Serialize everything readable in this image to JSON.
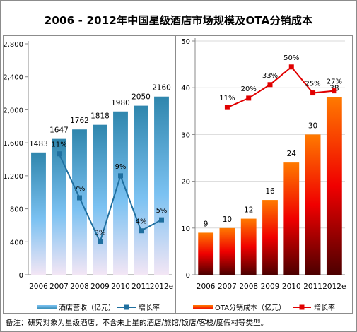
{
  "title": "2006 - 2012年中国星级酒店市场规模及OTA分销成本",
  "footnote": "备注：研究对象为星级酒店，不含未上星的酒店/旅馆/饭店/客栈/度假村等类型。",
  "colors": {
    "left_bar_top": "#2f86ad",
    "left_bar_mid": "#7cc2f2",
    "left_bar_bottom": "#f3e6f5",
    "right_bar_top": "#ff7a00",
    "right_bar_mid": "#f00000",
    "right_bar_bottom": "#4c0000",
    "left_line": "#1f6f9f",
    "right_line": "#e00000",
    "gridline": "#d9d9d9",
    "panel_border": "#8c8c8c"
  },
  "chart_data": [
    {
      "type": "bar",
      "categories": [
        "2006",
        "2007",
        "2008",
        "2009",
        "2010",
        "2011",
        "2012e"
      ],
      "series": [
        {
          "name": "酒店营收（亿元）",
          "values": [
            1483,
            1647,
            1762,
            1818,
            1980,
            2050,
            2160
          ]
        },
        {
          "name": "增长率",
          "type": "line",
          "values": [
            null,
            11,
            7,
            3,
            9,
            4,
            5
          ],
          "labels": [
            "",
            "11%",
            "7%",
            "3%",
            "9%",
            "4%",
            "5%"
          ]
        }
      ],
      "ylim": [
        0,
        2800
      ],
      "yticks": [
        "0",
        "400",
        "800",
        "1,200",
        "1,600",
        "2,000",
        "2,400",
        "2,800"
      ],
      "grid": false,
      "legend": "bottom"
    },
    {
      "type": "bar",
      "categories": [
        "2006",
        "2007",
        "2008",
        "2009",
        "2010",
        "2011",
        "2012e"
      ],
      "series": [
        {
          "name": "OTA分销成本（亿元）",
          "values": [
            9,
            10,
            12,
            16,
            24,
            30,
            38
          ]
        },
        {
          "name": "增长率",
          "type": "line",
          "values": [
            null,
            11,
            20,
            33,
            50,
            25,
            27
          ],
          "labels": [
            "",
            "11%",
            "20%",
            "33%",
            "50%",
            "25%",
            "27%"
          ]
        }
      ],
      "ylim": [
        0,
        50
      ],
      "yticks": [
        "0",
        "10",
        "20",
        "30",
        "40",
        "50"
      ],
      "grid": true,
      "legend": "bottom"
    }
  ]
}
